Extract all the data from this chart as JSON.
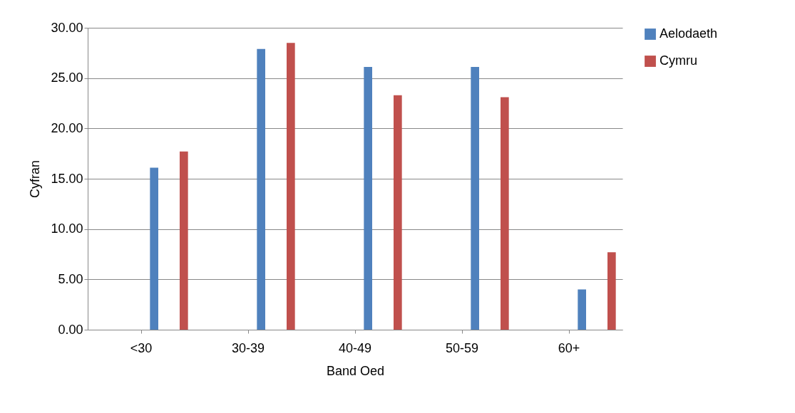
{
  "chart_data": {
    "type": "bar",
    "xlabel": "Band Oed",
    "ylabel": "Cyfran",
    "categories": [
      "<30",
      "30-39",
      "40-49",
      "50-59",
      "60+"
    ],
    "series": [
      {
        "name": "Aelodaeth",
        "color": "#4f81bd",
        "values": [
          16.1,
          27.9,
          26.1,
          26.1,
          4.0
        ]
      },
      {
        "name": "Cymru",
        "color": "#c0504d",
        "values": [
          17.7,
          28.5,
          23.3,
          23.1,
          7.7
        ]
      }
    ],
    "ylim": [
      0,
      30
    ],
    "yticks": [
      {
        "value": 0,
        "label": "0.00"
      },
      {
        "value": 5,
        "label": "5.00"
      },
      {
        "value": 10,
        "label": "10.00"
      },
      {
        "value": 15,
        "label": "15.00"
      },
      {
        "value": 20,
        "label": "20.00"
      },
      {
        "value": 25,
        "label": "25.00"
      },
      {
        "value": 30,
        "label": "30.00"
      }
    ],
    "grid": "y",
    "legend": "right"
  }
}
